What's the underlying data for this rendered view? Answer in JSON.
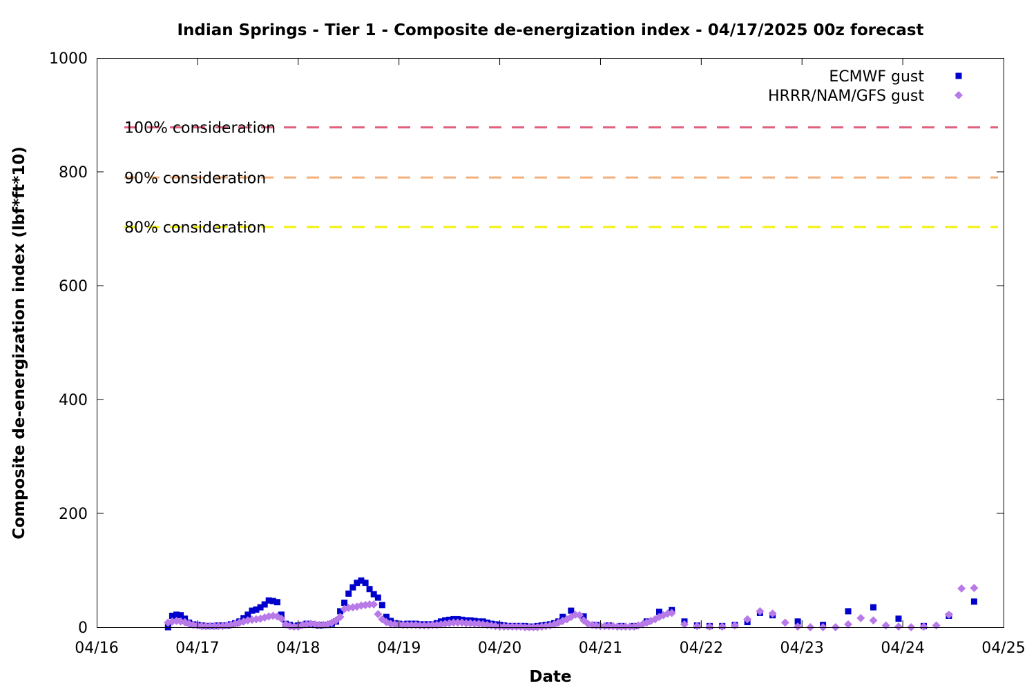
{
  "chart_data": {
    "type": "scatter",
    "title": "Indian Springs - Tier 1 - Composite de-energization index - 04/17/2025 00z forecast",
    "xlabel": "Date",
    "ylabel": "Composite de-energization index (lbf*ft*10)",
    "x_ticks": [
      "04/16",
      "04/17",
      "04/18",
      "04/19",
      "04/20",
      "04/21",
      "04/22",
      "04/23",
      "04/24",
      "04/25"
    ],
    "x_unit": "days from 04/16 00z",
    "xlim": [
      0,
      9
    ],
    "y_ticks": [
      0,
      200,
      400,
      600,
      800,
      1000
    ],
    "ylim": [
      0,
      1000
    ],
    "grid": false,
    "legend_position": "top-right",
    "thresholds": [
      {
        "label": "100% consideration",
        "value": 878,
        "color": "#e0607e"
      },
      {
        "label": "90% consideration",
        "value": 790,
        "color": "#f4b07a"
      },
      {
        "label": "80% consideration",
        "value": 703,
        "color": "#f2f20a"
      }
    ],
    "series": [
      {
        "name": "ECMWF gust",
        "color": "#0000cc",
        "marker": "square",
        "points": [
          [
            0.708,
            0
          ],
          [
            0.75,
            20
          ],
          [
            0.792,
            22
          ],
          [
            0.833,
            21
          ],
          [
            0.875,
            15
          ],
          [
            0.917,
            8
          ],
          [
            0.958,
            5
          ],
          [
            1.0,
            4
          ],
          [
            1.042,
            3
          ],
          [
            1.083,
            2
          ],
          [
            1.125,
            2
          ],
          [
            1.167,
            2
          ],
          [
            1.208,
            3
          ],
          [
            1.25,
            3
          ],
          [
            1.292,
            3
          ],
          [
            1.333,
            5
          ],
          [
            1.375,
            7
          ],
          [
            1.417,
            10
          ],
          [
            1.458,
            16
          ],
          [
            1.5,
            22
          ],
          [
            1.542,
            29
          ],
          [
            1.583,
            31
          ],
          [
            1.625,
            35
          ],
          [
            1.667,
            40
          ],
          [
            1.708,
            47
          ],
          [
            1.75,
            46
          ],
          [
            1.792,
            44
          ],
          [
            1.833,
            22
          ],
          [
            1.875,
            6
          ],
          [
            1.917,
            4
          ],
          [
            1.958,
            2
          ],
          [
            2.0,
            3
          ],
          [
            2.042,
            4
          ],
          [
            2.083,
            6
          ],
          [
            2.125,
            5
          ],
          [
            2.167,
            4
          ],
          [
            2.208,
            3
          ],
          [
            2.25,
            4
          ],
          [
            2.292,
            4
          ],
          [
            2.333,
            6
          ],
          [
            2.375,
            10
          ],
          [
            2.417,
            28
          ],
          [
            2.458,
            43
          ],
          [
            2.5,
            59
          ],
          [
            2.542,
            70
          ],
          [
            2.583,
            78
          ],
          [
            2.625,
            82
          ],
          [
            2.667,
            78
          ],
          [
            2.708,
            67
          ],
          [
            2.75,
            58
          ],
          [
            2.792,
            52
          ],
          [
            2.833,
            39
          ],
          [
            2.875,
            18
          ],
          [
            2.917,
            11
          ],
          [
            2.958,
            7
          ],
          [
            3.0,
            6
          ],
          [
            3.042,
            5
          ],
          [
            3.083,
            6
          ],
          [
            3.125,
            6
          ],
          [
            3.167,
            6
          ],
          [
            3.208,
            5
          ],
          [
            3.25,
            5
          ],
          [
            3.292,
            5
          ],
          [
            3.333,
            5
          ],
          [
            3.375,
            7
          ],
          [
            3.417,
            10
          ],
          [
            3.458,
            12
          ],
          [
            3.5,
            13
          ],
          [
            3.542,
            14
          ],
          [
            3.583,
            14
          ],
          [
            3.625,
            13
          ],
          [
            3.667,
            12
          ],
          [
            3.708,
            12
          ],
          [
            3.75,
            11
          ],
          [
            3.792,
            10
          ],
          [
            3.833,
            10
          ],
          [
            3.875,
            8
          ],
          [
            3.917,
            6
          ],
          [
            3.958,
            5
          ],
          [
            4.0,
            4
          ],
          [
            4.042,
            3
          ],
          [
            4.083,
            2
          ],
          [
            4.125,
            2
          ],
          [
            4.167,
            2
          ],
          [
            4.208,
            2
          ],
          [
            4.25,
            2
          ],
          [
            4.292,
            1
          ],
          [
            4.333,
            1
          ],
          [
            4.375,
            2
          ],
          [
            4.417,
            3
          ],
          [
            4.458,
            4
          ],
          [
            4.5,
            5
          ],
          [
            4.542,
            7
          ],
          [
            4.583,
            10
          ],
          [
            4.625,
            18
          ],
          [
            4.708,
            29
          ],
          [
            4.833,
            19
          ],
          [
            4.958,
            4
          ],
          [
            5.083,
            3
          ],
          [
            5.208,
            2
          ],
          [
            5.333,
            2
          ],
          [
            5.458,
            10
          ],
          [
            5.583,
            27
          ],
          [
            5.708,
            30
          ],
          [
            5.833,
            10
          ],
          [
            5.958,
            3
          ],
          [
            6.083,
            2
          ],
          [
            6.208,
            2
          ],
          [
            6.333,
            4
          ],
          [
            6.458,
            9
          ],
          [
            6.583,
            25
          ],
          [
            6.708,
            21
          ],
          [
            6.958,
            10
          ],
          [
            7.208,
            4
          ],
          [
            7.458,
            28
          ],
          [
            7.708,
            35
          ],
          [
            7.958,
            15
          ],
          [
            8.208,
            2
          ],
          [
            8.458,
            20
          ],
          [
            8.708,
            45
          ]
        ]
      },
      {
        "name": "HRRR/NAM/GFS gust",
        "color": "#b87ae8",
        "marker": "diamond",
        "points": [
          [
            0.708,
            8
          ],
          [
            0.75,
            10
          ],
          [
            0.792,
            11
          ],
          [
            0.833,
            10
          ],
          [
            0.875,
            9
          ],
          [
            0.917,
            6
          ],
          [
            0.958,
            4
          ],
          [
            1.0,
            3
          ],
          [
            1.042,
            2
          ],
          [
            1.083,
            2
          ],
          [
            1.125,
            2
          ],
          [
            1.167,
            2
          ],
          [
            1.208,
            2
          ],
          [
            1.25,
            2
          ],
          [
            1.292,
            3
          ],
          [
            1.333,
            4
          ],
          [
            1.375,
            6
          ],
          [
            1.417,
            8
          ],
          [
            1.458,
            10
          ],
          [
            1.5,
            12
          ],
          [
            1.542,
            13
          ],
          [
            1.583,
            14
          ],
          [
            1.625,
            15
          ],
          [
            1.667,
            17
          ],
          [
            1.708,
            19
          ],
          [
            1.75,
            20
          ],
          [
            1.792,
            19
          ],
          [
            1.833,
            15
          ],
          [
            1.875,
            5
          ],
          [
            1.917,
            2
          ],
          [
            1.958,
            1
          ],
          [
            2.0,
            1
          ],
          [
            2.042,
            4
          ],
          [
            2.083,
            5
          ],
          [
            2.125,
            6
          ],
          [
            2.167,
            5
          ],
          [
            2.208,
            4
          ],
          [
            2.25,
            4
          ],
          [
            2.292,
            5
          ],
          [
            2.333,
            8
          ],
          [
            2.375,
            12
          ],
          [
            2.417,
            18
          ],
          [
            2.458,
            32
          ],
          [
            2.5,
            34
          ],
          [
            2.542,
            35
          ],
          [
            2.583,
            36
          ],
          [
            2.625,
            38
          ],
          [
            2.667,
            39
          ],
          [
            2.708,
            40
          ],
          [
            2.75,
            40
          ],
          [
            2.792,
            23
          ],
          [
            2.833,
            14
          ],
          [
            2.875,
            9
          ],
          [
            2.917,
            6
          ],
          [
            2.958,
            5
          ],
          [
            3.0,
            5
          ],
          [
            3.042,
            4
          ],
          [
            3.083,
            4
          ],
          [
            3.125,
            4
          ],
          [
            3.167,
            4
          ],
          [
            3.208,
            3
          ],
          [
            3.25,
            3
          ],
          [
            3.292,
            3
          ],
          [
            3.333,
            4
          ],
          [
            3.375,
            4
          ],
          [
            3.417,
            5
          ],
          [
            3.458,
            6
          ],
          [
            3.5,
            7
          ],
          [
            3.542,
            8
          ],
          [
            3.583,
            8
          ],
          [
            3.625,
            8
          ],
          [
            3.667,
            7
          ],
          [
            3.708,
            7
          ],
          [
            3.75,
            6
          ],
          [
            3.792,
            6
          ],
          [
            3.833,
            5
          ],
          [
            3.875,
            4
          ],
          [
            3.917,
            3
          ],
          [
            3.958,
            2
          ],
          [
            4.0,
            1
          ],
          [
            4.042,
            1
          ],
          [
            4.083,
            1
          ],
          [
            4.125,
            1
          ],
          [
            4.167,
            1
          ],
          [
            4.208,
            1
          ],
          [
            4.25,
            0
          ],
          [
            4.292,
            0
          ],
          [
            4.333,
            0
          ],
          [
            4.375,
            0
          ],
          [
            4.417,
            1
          ],
          [
            4.458,
            2
          ],
          [
            4.5,
            3
          ],
          [
            4.542,
            5
          ],
          [
            4.583,
            8
          ],
          [
            4.625,
            11
          ],
          [
            4.667,
            14
          ],
          [
            4.708,
            18
          ],
          [
            4.75,
            22
          ],
          [
            4.792,
            21
          ],
          [
            4.833,
            12
          ],
          [
            4.875,
            6
          ],
          [
            4.917,
            4
          ],
          [
            4.958,
            3
          ],
          [
            5.0,
            2
          ],
          [
            5.042,
            2
          ],
          [
            5.083,
            2
          ],
          [
            5.125,
            2
          ],
          [
            5.167,
            1
          ],
          [
            5.208,
            1
          ],
          [
            5.25,
            1
          ],
          [
            5.292,
            1
          ],
          [
            5.333,
            1
          ],
          [
            5.375,
            3
          ],
          [
            5.417,
            5
          ],
          [
            5.458,
            8
          ],
          [
            5.5,
            11
          ],
          [
            5.542,
            14
          ],
          [
            5.583,
            18
          ],
          [
            5.625,
            21
          ],
          [
            5.667,
            24
          ],
          [
            5.708,
            25
          ],
          [
            5.833,
            5
          ],
          [
            5.958,
            2
          ],
          [
            6.083,
            1
          ],
          [
            6.208,
            1
          ],
          [
            6.333,
            3
          ],
          [
            6.458,
            14
          ],
          [
            6.583,
            28
          ],
          [
            6.708,
            24
          ],
          [
            6.833,
            8
          ],
          [
            6.958,
            1
          ],
          [
            7.083,
            0
          ],
          [
            7.208,
            0
          ],
          [
            7.333,
            0
          ],
          [
            7.458,
            5
          ],
          [
            7.583,
            16
          ],
          [
            7.708,
            12
          ],
          [
            7.833,
            3
          ],
          [
            7.958,
            1
          ],
          [
            8.083,
            0
          ],
          [
            8.208,
            1
          ],
          [
            8.333,
            3
          ],
          [
            8.458,
            22
          ],
          [
            8.583,
            68
          ],
          [
            8.708,
            69
          ]
        ]
      }
    ]
  }
}
